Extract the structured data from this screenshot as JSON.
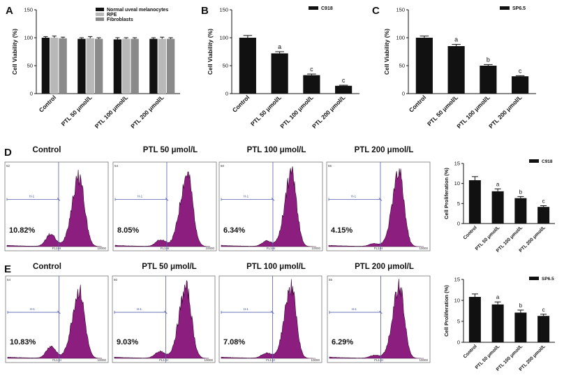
{
  "panels": [
    "A",
    "B",
    "C",
    "D",
    "E"
  ],
  "colors": {
    "black": "#111111",
    "rpe": "#b8b8b8",
    "fibro": "#8a8a8a",
    "hist": "#8b1e7e",
    "gate": "#5560b0"
  },
  "chart_data": [
    {
      "id": "A",
      "type": "bar",
      "ylabel": "Cell Viability (%)",
      "ylim": [
        0,
        150
      ],
      "yticks": [
        0,
        50,
        100,
        150
      ],
      "categories": [
        "Control",
        "PTL 50 μmol/L",
        "PTL 100 μmol/L",
        "PTL 200 μmol/L"
      ],
      "legend": [
        "Normal uveal melanocytes",
        "RPE",
        "Fibroblasts"
      ],
      "series": [
        {
          "name": "Normal uveal melanocytes",
          "color": "#111111",
          "values": [
            100,
            98,
            97,
            98
          ],
          "errors": [
            2,
            2,
            3,
            2
          ]
        },
        {
          "name": "RPE",
          "color": "#b8b8b8",
          "values": [
            100,
            99,
            98,
            98
          ],
          "errors": [
            3,
            3,
            2,
            3
          ]
        },
        {
          "name": "Fibroblasts",
          "color": "#8a8a8a",
          "values": [
            99,
            98,
            98,
            98
          ],
          "errors": [
            2,
            2,
            2,
            2
          ]
        }
      ]
    },
    {
      "id": "B",
      "type": "bar",
      "ylabel": "Cell Viability (%)",
      "ylim": [
        0,
        150
      ],
      "yticks": [
        0,
        50,
        100,
        150
      ],
      "categories": [
        "Control",
        "PTL 50 μmol/L",
        "PTL 100 μmol/L",
        "PTL 200 μmol/L"
      ],
      "legend": [
        "C918"
      ],
      "values": [
        100,
        72,
        33,
        14
      ],
      "errors": [
        4,
        3,
        2,
        1
      ],
      "letters": [
        "",
        "a",
        "c",
        "c"
      ]
    },
    {
      "id": "C",
      "type": "bar",
      "ylabel": "Cell Viability (%)",
      "ylim": [
        0,
        150
      ],
      "yticks": [
        0,
        50,
        100,
        150
      ],
      "categories": [
        "Control",
        "PTL 50 μmol/L",
        "PTL 100 μmol/L",
        "PTL 200 μmol/L"
      ],
      "legend": [
        "SP6.5"
      ],
      "values": [
        100,
        85,
        50,
        31
      ],
      "errors": [
        3,
        3,
        2,
        1
      ],
      "letters": [
        "",
        "a",
        "b",
        "c"
      ]
    },
    {
      "id": "D-bar",
      "type": "bar",
      "ylabel": "Cell Proliferation (%)",
      "ylim": [
        0,
        15
      ],
      "yticks": [
        0,
        5,
        10,
        15
      ],
      "categories": [
        "Control",
        "PTL 50 μmol/L",
        "PTL 100 μmol/L",
        "PTL 200 μmol/L"
      ],
      "legend": [
        "C918"
      ],
      "values": [
        10.82,
        8.05,
        6.34,
        4.15
      ],
      "errors": [
        0.9,
        0.6,
        0.4,
        0.3
      ],
      "letters": [
        "",
        "a",
        "b",
        "c"
      ]
    },
    {
      "id": "E-bar",
      "type": "bar",
      "ylabel": "Cell Proliferation (%)",
      "ylim": [
        0,
        15
      ],
      "yticks": [
        0,
        5,
        10,
        15
      ],
      "categories": [
        "Control",
        "PTL 50 μmol/L",
        "PTL 100 μmol/L",
        "PTL 200 μmol/L"
      ],
      "legend": [
        "SP6.5"
      ],
      "values": [
        10.83,
        9.03,
        7.08,
        6.29
      ],
      "errors": [
        0.7,
        0.6,
        0.6,
        0.4
      ],
      "letters": [
        "",
        "a",
        "b",
        "c"
      ]
    },
    {
      "id": "D-hist",
      "type": "area",
      "titles": [
        "Control",
        "PTL 50 μmol/L",
        "PTL 100 μmol/L",
        "PTL 200 μmol/L"
      ],
      "percents": [
        "10.82%",
        "8.05%",
        "6.34%",
        "4.15%"
      ],
      "gate_label": "H-1",
      "xlabel": "FL1-H",
      "xmax_label": "10000",
      "ymax_labels": [
        "52",
        "54",
        "60",
        "55"
      ]
    },
    {
      "id": "E-hist",
      "type": "area",
      "titles": [
        "Control",
        "PTL 50 μmol/L",
        "PTL 100 μmol/L",
        "PTL 200 μmol/L"
      ],
      "percents": [
        "10.83%",
        "9.03%",
        "7.08%",
        "6.29%"
      ],
      "gate_label": "H-1",
      "xlabel": "FL1-H",
      "xmax_label": "10000",
      "ymax_labels": [
        "54",
        "60",
        "",
        "55"
      ]
    }
  ]
}
